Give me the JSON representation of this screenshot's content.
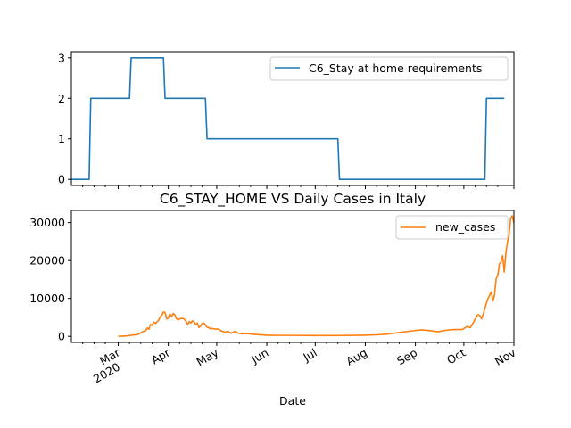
{
  "chart_data": [
    {
      "type": "line",
      "title": "",
      "xlabel": "",
      "ylabel": "",
      "color": "#1f77b4",
      "ylim": [
        -0.15,
        3.15
      ],
      "yticks": [
        0,
        1,
        2,
        3
      ],
      "legend": {
        "placement": "top-right",
        "entries": [
          "C6_Stay at home requirements"
        ]
      },
      "series": [
        {
          "name": "C6_Stay at home requirements",
          "points": [
            [
              "2020-02-01",
              0
            ],
            [
              "2020-02-12",
              0
            ],
            [
              "2020-02-13",
              2
            ],
            [
              "2020-03-08",
              2
            ],
            [
              "2020-03-09",
              3
            ],
            [
              "2020-03-29",
              3
            ],
            [
              "2020-03-30",
              2
            ],
            [
              "2020-04-24",
              2
            ],
            [
              "2020-04-25",
              1
            ],
            [
              "2020-07-15",
              1
            ],
            [
              "2020-07-16",
              0
            ],
            [
              "2020-10-14",
              0
            ],
            [
              "2020-10-15",
              2
            ],
            [
              "2020-10-26",
              2
            ]
          ]
        }
      ]
    },
    {
      "type": "line",
      "title": "C6_STAY_HOME VS Daily Cases in Italy",
      "xlabel": "Date",
      "ylabel": "",
      "color": "#ff7f0e",
      "ylim": [
        -1600,
        33200
      ],
      "yticks": [
        0,
        10000,
        20000,
        30000
      ],
      "xticks": [
        {
          "label": "Mar",
          "date": "2020-03-01",
          "sublabel": "2020"
        },
        {
          "label": "Apr",
          "date": "2020-04-01"
        },
        {
          "label": "May",
          "date": "2020-05-01"
        },
        {
          "label": "Jun",
          "date": "2020-06-01"
        },
        {
          "label": "Jul",
          "date": "2020-07-01"
        },
        {
          "label": "Aug",
          "date": "2020-08-01"
        },
        {
          "label": "Sep",
          "date": "2020-09-01"
        },
        {
          "label": "Oct",
          "date": "2020-10-01"
        },
        {
          "label": "Nov",
          "date": "2020-11-01"
        }
      ],
      "legend": {
        "placement": "top-right",
        "entries": [
          "new_cases"
        ]
      },
      "series": [
        {
          "name": "new_cases",
          "points": [
            [
              "2020-03-01",
              0
            ],
            [
              "2020-03-04",
              50
            ],
            [
              "2020-03-07",
              150
            ],
            [
              "2020-03-10",
              350
            ],
            [
              "2020-03-12",
              400
            ],
            [
              "2020-03-14",
              650
            ],
            [
              "2020-03-16",
              1200
            ],
            [
              "2020-03-18",
              1500
            ],
            [
              "2020-03-19",
              2200
            ],
            [
              "2020-03-20",
              1900
            ],
            [
              "2020-03-21",
              3100
            ],
            [
              "2020-03-22",
              2900
            ],
            [
              "2020-03-23",
              3700
            ],
            [
              "2020-03-24",
              3400
            ],
            [
              "2020-03-25",
              3800
            ],
            [
              "2020-03-26",
              4200
            ],
            [
              "2020-03-27",
              5100
            ],
            [
              "2020-03-28",
              5500
            ],
            [
              "2020-03-29",
              6400
            ],
            [
              "2020-03-30",
              6300
            ],
            [
              "2020-03-31",
              4600
            ],
            [
              "2020-04-01",
              4800
            ],
            [
              "2020-04-02",
              5900
            ],
            [
              "2020-04-03",
              5200
            ],
            [
              "2020-04-04",
              6000
            ],
            [
              "2020-04-05",
              5700
            ],
            [
              "2020-04-06",
              4700
            ],
            [
              "2020-04-07",
              4300
            ],
            [
              "2020-04-08",
              4600
            ],
            [
              "2020-04-09",
              4700
            ],
            [
              "2020-04-10",
              4700
            ],
            [
              "2020-04-11",
              4500
            ],
            [
              "2020-04-12",
              3900
            ],
            [
              "2020-04-13",
              3100
            ],
            [
              "2020-04-14",
              3900
            ],
            [
              "2020-04-15",
              3500
            ],
            [
              "2020-04-16",
              4100
            ],
            [
              "2020-04-17",
              3800
            ],
            [
              "2020-04-18",
              3100
            ],
            [
              "2020-04-19",
              3500
            ],
            [
              "2020-04-20",
              2300
            ],
            [
              "2020-04-21",
              2700
            ],
            [
              "2020-04-22",
              3400
            ],
            [
              "2020-04-23",
              3500
            ],
            [
              "2020-04-24",
              3000
            ],
            [
              "2020-04-25",
              2400
            ],
            [
              "2020-04-26",
              2300
            ],
            [
              "2020-04-27",
              2000
            ],
            [
              "2020-04-28",
              2100
            ],
            [
              "2020-04-30",
              1900
            ],
            [
              "2020-05-02",
              1900
            ],
            [
              "2020-05-04",
              1400
            ],
            [
              "2020-05-06",
              1100
            ],
            [
              "2020-05-08",
              1300
            ],
            [
              "2020-05-10",
              800
            ],
            [
              "2020-05-12",
              1300
            ],
            [
              "2020-05-14",
              900
            ],
            [
              "2020-05-16",
              700
            ],
            [
              "2020-05-20",
              700
            ],
            [
              "2020-05-25",
              500
            ],
            [
              "2020-06-01",
              300
            ],
            [
              "2020-06-10",
              250
            ],
            [
              "2020-06-20",
              250
            ],
            [
              "2020-06-30",
              200
            ],
            [
              "2020-07-10",
              200
            ],
            [
              "2020-07-20",
              230
            ],
            [
              "2020-07-31",
              300
            ],
            [
              "2020-08-08",
              400
            ],
            [
              "2020-08-15",
              600
            ],
            [
              "2020-08-22",
              1000
            ],
            [
              "2020-08-29",
              1400
            ],
            [
              "2020-09-05",
              1700
            ],
            [
              "2020-09-10",
              1500
            ],
            [
              "2020-09-15",
              1200
            ],
            [
              "2020-09-20",
              1600
            ],
            [
              "2020-09-25",
              1800
            ],
            [
              "2020-09-30",
              1800
            ],
            [
              "2020-10-03",
              2600
            ],
            [
              "2020-10-05",
              2300
            ],
            [
              "2020-10-07",
              3700
            ],
            [
              "2020-10-09",
              5400
            ],
            [
              "2020-10-10",
              5700
            ],
            [
              "2020-10-11",
              5400
            ],
            [
              "2020-10-12",
              4600
            ],
            [
              "2020-10-13",
              5900
            ],
            [
              "2020-10-14",
              7300
            ],
            [
              "2020-10-15",
              8800
            ],
            [
              "2020-10-16",
              10000
            ],
            [
              "2020-10-17",
              10900
            ],
            [
              "2020-10-18",
              11700
            ],
            [
              "2020-10-19",
              9300
            ],
            [
              "2020-10-20",
              10900
            ],
            [
              "2020-10-21",
              15200
            ],
            [
              "2020-10-22",
              16100
            ],
            [
              "2020-10-23",
              19100
            ],
            [
              "2020-10-24",
              19600
            ],
            [
              "2020-10-25",
              21300
            ],
            [
              "2020-10-26",
              17000
            ],
            [
              "2020-10-27",
              21900
            ],
            [
              "2020-10-28",
              24900
            ],
            [
              "2020-10-29",
              26800
            ],
            [
              "2020-10-30",
              31100
            ],
            [
              "2020-10-31",
              31800
            ],
            [
              "2020-11-01",
              29900
            ]
          ]
        }
      ]
    }
  ]
}
